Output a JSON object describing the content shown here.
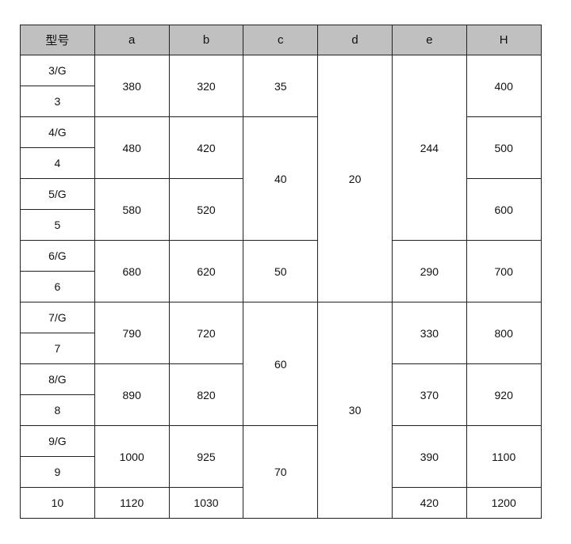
{
  "table": {
    "headers": [
      "型号",
      "a",
      "b",
      "c",
      "d",
      "e",
      "H"
    ],
    "columns": {
      "model": [
        {
          "v": "3/G",
          "span": 1
        },
        {
          "v": "3",
          "span": 1
        },
        {
          "v": "4/G",
          "span": 1
        },
        {
          "v": "4",
          "span": 1
        },
        {
          "v": "5/G",
          "span": 1
        },
        {
          "v": "5",
          "span": 1
        },
        {
          "v": "6/G",
          "span": 1
        },
        {
          "v": "6",
          "span": 1
        },
        {
          "v": "7/G",
          "span": 1
        },
        {
          "v": "7",
          "span": 1
        },
        {
          "v": "8/G",
          "span": 1
        },
        {
          "v": "8",
          "span": 1
        },
        {
          "v": "9/G",
          "span": 1
        },
        {
          "v": "9",
          "span": 1
        },
        {
          "v": "10",
          "span": 1
        }
      ],
      "a": [
        {
          "v": "380",
          "span": 2
        },
        {
          "v": "480",
          "span": 2
        },
        {
          "v": "580",
          "span": 2
        },
        {
          "v": "680",
          "span": 2
        },
        {
          "v": "790",
          "span": 2
        },
        {
          "v": "890",
          "span": 2
        },
        {
          "v": "1000",
          "span": 2
        },
        {
          "v": "1120",
          "span": 1
        }
      ],
      "b": [
        {
          "v": "320",
          "span": 2
        },
        {
          "v": "420",
          "span": 2
        },
        {
          "v": "520",
          "span": 2
        },
        {
          "v": "620",
          "span": 2
        },
        {
          "v": "720",
          "span": 2
        },
        {
          "v": "820",
          "span": 2
        },
        {
          "v": "925",
          "span": 2
        },
        {
          "v": "1030",
          "span": 1
        }
      ],
      "c": [
        {
          "v": "35",
          "span": 2
        },
        {
          "v": "40",
          "span": 4
        },
        {
          "v": "50",
          "span": 2
        },
        {
          "v": "60",
          "span": 4
        },
        {
          "v": "70",
          "span": 3
        }
      ],
      "d": [
        {
          "v": "20",
          "span": 8
        },
        {
          "v": "30",
          "span": 7
        }
      ],
      "e": [
        {
          "v": "244",
          "span": 6
        },
        {
          "v": "290",
          "span": 2
        },
        {
          "v": "330",
          "span": 2
        },
        {
          "v": "370",
          "span": 2
        },
        {
          "v": "390",
          "span": 2
        },
        {
          "v": "420",
          "span": 1
        }
      ],
      "H": [
        {
          "v": "400",
          "span": 2
        },
        {
          "v": "500",
          "span": 2
        },
        {
          "v": "600",
          "span": 2
        },
        {
          "v": "700",
          "span": 2
        },
        {
          "v": "800",
          "span": 2
        },
        {
          "v": "920",
          "span": 2
        },
        {
          "v": "1100",
          "span": 2
        },
        {
          "v": "1200",
          "span": 1
        }
      ]
    },
    "header_bg": "#c0c0c0"
  }
}
